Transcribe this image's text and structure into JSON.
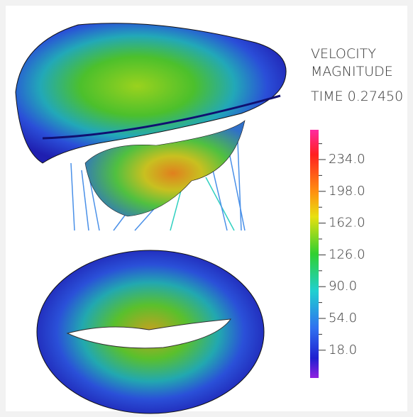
{
  "legend": {
    "title": [
      "VELOCITY",
      "MAGNITUDE"
    ],
    "time": "TIME 0.27450",
    "ticks": [
      "234.0",
      "198.0",
      "162.0",
      "126.0",
      "90.0",
      "54.0",
      "18.0"
    ]
  }
}
